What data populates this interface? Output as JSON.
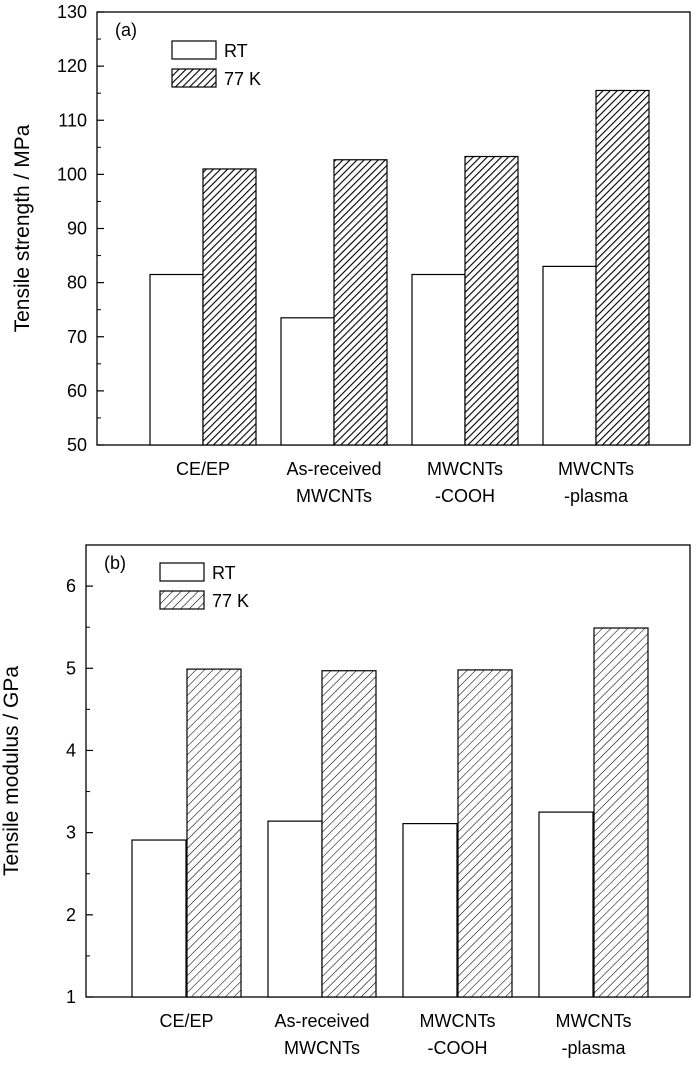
{
  "chart_data": [
    {
      "type": "bar",
      "panel_label": "(a)",
      "ylabel": "Tensile strength / MPa",
      "xlabel": "",
      "ylim": [
        50,
        130
      ],
      "yticks": [
        50,
        60,
        70,
        80,
        90,
        100,
        110,
        120,
        130
      ],
      "categories": [
        [
          "CE/EP"
        ],
        [
          "As-received",
          "MWCNTs"
        ],
        [
          "MWCNTs",
          "-COOH"
        ],
        [
          "MWCNTs",
          "-plasma"
        ]
      ],
      "series": [
        {
          "name": "RT",
          "values": [
            81.5,
            73.5,
            81.5,
            83.0
          ],
          "fill": "#ffffff"
        },
        {
          "name": "77 K",
          "values": [
            101.0,
            102.7,
            103.3,
            115.5
          ],
          "fill": "hatch-dense"
        }
      ],
      "legend_position": "top-left",
      "grid": false
    },
    {
      "type": "bar",
      "panel_label": "(b)",
      "ylabel": "Tensile modulus / GPa",
      "xlabel": "",
      "ylim": [
        1,
        6.5
      ],
      "yticks": [
        1,
        2,
        3,
        4,
        5,
        6
      ],
      "categories": [
        [
          "CE/EP"
        ],
        [
          "As-received",
          "MWCNTs"
        ],
        [
          "MWCNTs",
          "-COOH"
        ],
        [
          "MWCNTs",
          "-plasma"
        ]
      ],
      "series": [
        {
          "name": "RT",
          "values": [
            2.91,
            3.14,
            3.11,
            3.25
          ],
          "fill": "#ffffff"
        },
        {
          "name": "77 K",
          "values": [
            4.99,
            4.97,
            4.98,
            5.49
          ],
          "fill": "hatch-light"
        }
      ],
      "legend_position": "top-left",
      "grid": false
    }
  ]
}
